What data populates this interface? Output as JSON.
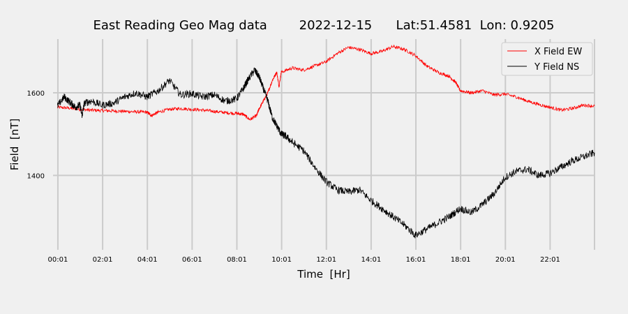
{
  "chart_data": {
    "type": "line",
    "title": "East Reading Geo Mag data        2022-12-15      Lat:51.4581  Lon: 0.9205",
    "xlabel": "Time  [Hr]",
    "ylabel": "Field  [nT]",
    "x_unit": "hours",
    "xlim": [
      -0.2,
      24.0
    ],
    "ylim": [
      1220,
      1730
    ],
    "x_ticks": [
      {
        "value": 0.0167,
        "label": "00:01"
      },
      {
        "value": 2.0167,
        "label": "02:01"
      },
      {
        "value": 4.0167,
        "label": "04:01"
      },
      {
        "value": 6.0167,
        "label": "06:01"
      },
      {
        "value": 8.0167,
        "label": "08:01"
      },
      {
        "value": 10.0167,
        "label": "10:01"
      },
      {
        "value": 12.0167,
        "label": "12:01"
      },
      {
        "value": 14.0167,
        "label": "14:01"
      },
      {
        "value": 16.0167,
        "label": "16:01"
      },
      {
        "value": 18.0167,
        "label": "18:01"
      },
      {
        "value": 20.0167,
        "label": "20:01"
      },
      {
        "value": 22.0167,
        "label": "22:01"
      }
    ],
    "x_grid_extra": [
      24.0
    ],
    "y_ticks": [
      {
        "value": 1400,
        "label": "1400"
      },
      {
        "value": 1600,
        "label": "1600"
      }
    ],
    "grid": true,
    "legend_position": "top-right",
    "series": [
      {
        "name": "X Field EW",
        "color": "#ff0000",
        "x": [
          0.0,
          0.5,
          1.0,
          1.5,
          2.0,
          2.5,
          3.0,
          3.5,
          4.0,
          4.2,
          4.5,
          5.0,
          5.5,
          6.0,
          6.5,
          7.0,
          7.5,
          8.0,
          8.3,
          8.6,
          8.9,
          9.0,
          9.2,
          9.4,
          9.6,
          9.8,
          9.9,
          10.0,
          10.5,
          11.0,
          11.5,
          12.0,
          12.5,
          13.0,
          13.5,
          14.0,
          14.5,
          15.0,
          15.5,
          16.0,
          16.5,
          17.0,
          17.5,
          17.8,
          18.0,
          18.5,
          19.0,
          19.5,
          20.0,
          20.5,
          21.0,
          21.5,
          22.0,
          22.5,
          23.0,
          23.5,
          24.0
        ],
        "y": [
          1565,
          1563,
          1560,
          1558,
          1557,
          1556,
          1555,
          1554,
          1553,
          1545,
          1553,
          1560,
          1562,
          1560,
          1558,
          1555,
          1552,
          1550,
          1548,
          1535,
          1545,
          1560,
          1580,
          1600,
          1630,
          1650,
          1615,
          1650,
          1660,
          1655,
          1665,
          1675,
          1695,
          1710,
          1705,
          1695,
          1700,
          1712,
          1705,
          1690,
          1665,
          1650,
          1640,
          1625,
          1605,
          1600,
          1605,
          1595,
          1597,
          1590,
          1580,
          1572,
          1565,
          1558,
          1562,
          1570,
          1568
        ]
      },
      {
        "name": "Y Field NS",
        "color": "#000000",
        "x": [
          0.0,
          0.3,
          0.6,
          0.8,
          1.0,
          1.1,
          1.2,
          1.5,
          2.0,
          2.5,
          3.0,
          3.5,
          4.0,
          4.5,
          5.0,
          5.5,
          6.0,
          6.5,
          7.0,
          7.5,
          8.0,
          8.3,
          8.5,
          8.8,
          9.0,
          9.2,
          9.4,
          9.6,
          9.8,
          10.0,
          10.2,
          10.5,
          11.0,
          11.5,
          12.0,
          12.5,
          13.0,
          13.5,
          14.0,
          14.5,
          15.0,
          15.5,
          16.0,
          16.5,
          17.0,
          17.5,
          18.0,
          18.5,
          19.0,
          19.5,
          20.0,
          20.5,
          21.0,
          21.5,
          22.0,
          22.5,
          23.0,
          23.5,
          24.0
        ],
        "y": [
          1568,
          1590,
          1575,
          1565,
          1570,
          1545,
          1575,
          1580,
          1570,
          1575,
          1590,
          1600,
          1590,
          1605,
          1630,
          1595,
          1598,
          1590,
          1595,
          1580,
          1585,
          1610,
          1630,
          1655,
          1640,
          1610,
          1580,
          1540,
          1520,
          1500,
          1495,
          1480,
          1460,
          1420,
          1385,
          1365,
          1360,
          1365,
          1340,
          1320,
          1300,
          1280,
          1255,
          1270,
          1285,
          1300,
          1320,
          1310,
          1330,
          1355,
          1395,
          1410,
          1415,
          1400,
          1405,
          1420,
          1435,
          1445,
          1455
        ]
      }
    ]
  }
}
